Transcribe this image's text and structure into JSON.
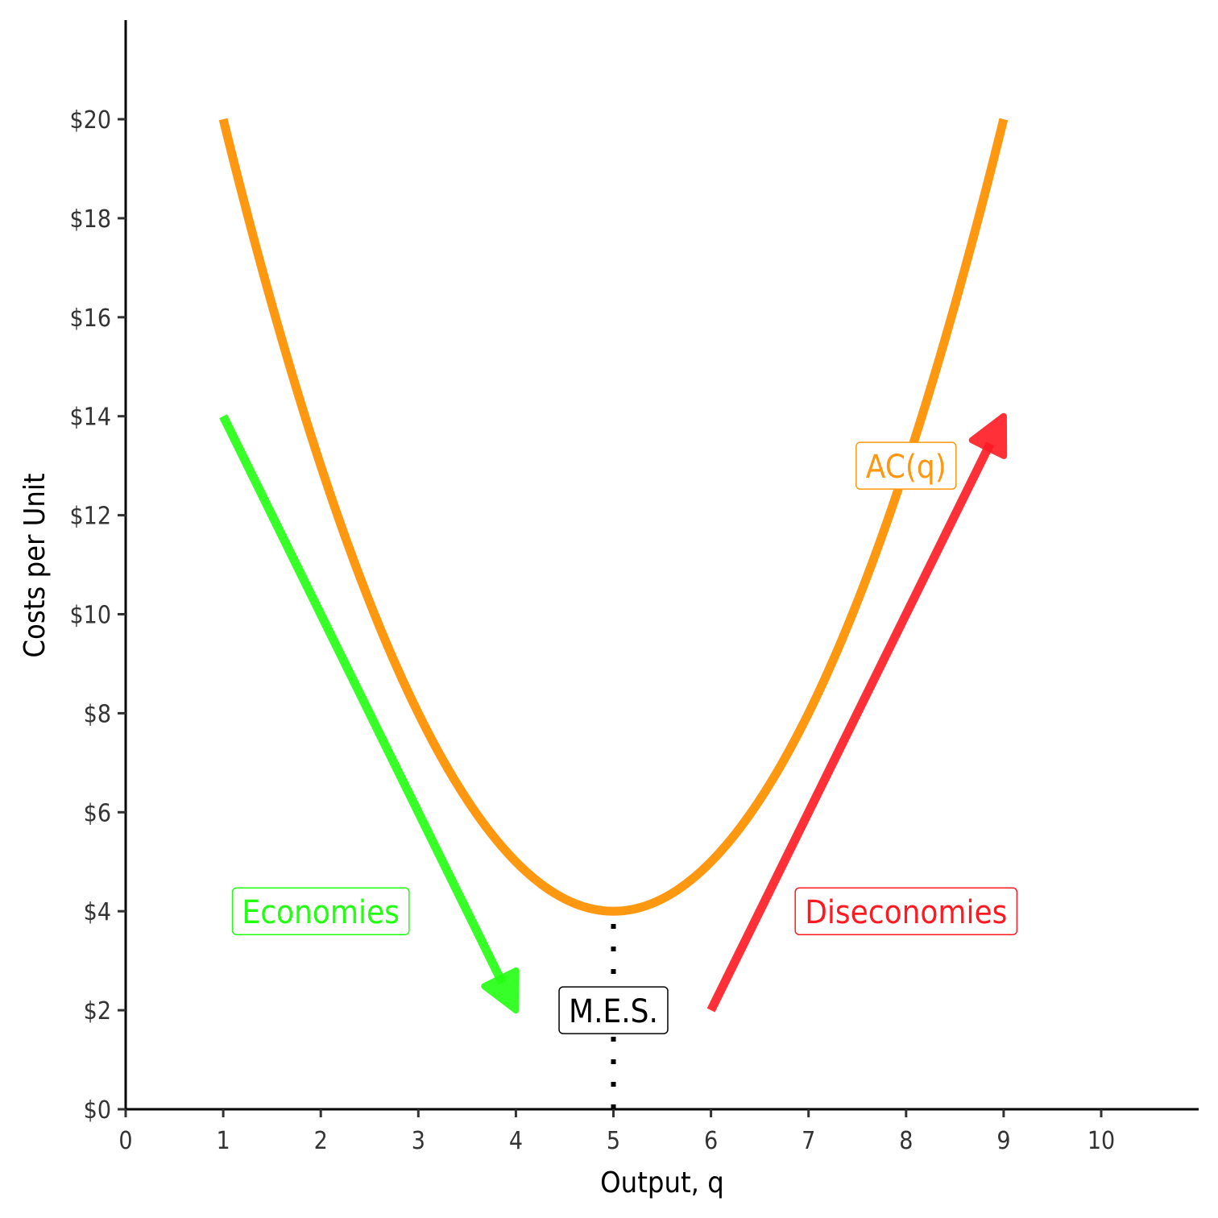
{
  "chart_data": {
    "type": "line",
    "xlabel": "Output, q",
    "ylabel": "Costs per Unit",
    "xlim": [
      0,
      11
    ],
    "ylim": [
      0,
      20
    ],
    "x_ticks": [
      0,
      1,
      2,
      3,
      4,
      5,
      6,
      7,
      8,
      9,
      10
    ],
    "x_tick_labels": [
      "0",
      "1",
      "2",
      "3",
      "4",
      "5",
      "6",
      "7",
      "8",
      "9",
      "10"
    ],
    "y_ticks": [
      0,
      2,
      4,
      6,
      8,
      10,
      12,
      14,
      16,
      18,
      20
    ],
    "y_tick_labels": [
      "$0",
      "$2",
      "$4",
      "$6",
      "$8",
      "$10",
      "$12",
      "$14",
      "$16",
      "$18",
      "$20"
    ],
    "grid": false,
    "series": [
      {
        "name": "AC(q)",
        "color": "#FF9811",
        "function": "(x-5)^2+4",
        "x_range": [
          1,
          9
        ],
        "x": [
          1,
          2,
          3,
          4,
          5,
          6,
          7,
          8,
          9
        ],
        "y": [
          20,
          13,
          8,
          5,
          4,
          5,
          8,
          13,
          20
        ]
      }
    ],
    "arrows": [
      {
        "name": "economies-arrow",
        "color": "#22FF11",
        "from": [
          1,
          14
        ],
        "to": [
          4,
          2
        ]
      },
      {
        "name": "diseconomies-arrow",
        "color": "#FF1A22",
        "from": [
          6,
          2
        ],
        "to": [
          9,
          14
        ]
      }
    ],
    "reference_lines": [
      {
        "name": "mes-line",
        "color": "#000000",
        "style": "dotted",
        "x": 5,
        "y_from": 0,
        "y_to": 4
      }
    ],
    "annotations": [
      {
        "name": "ac-label",
        "text": "AC(q)",
        "color": "#FF9811",
        "x": 8,
        "y": 13
      },
      {
        "name": "economies-label",
        "text": "Economies",
        "color": "#22FF11",
        "x": 2,
        "y": 4
      },
      {
        "name": "diseconomies-label",
        "text": "Diseconomies",
        "color": "#FF1A22",
        "x": 8,
        "y": 4
      },
      {
        "name": "mes-label",
        "text": "M.E.S.",
        "color": "#000000",
        "x": 5,
        "y": 2
      }
    ]
  }
}
